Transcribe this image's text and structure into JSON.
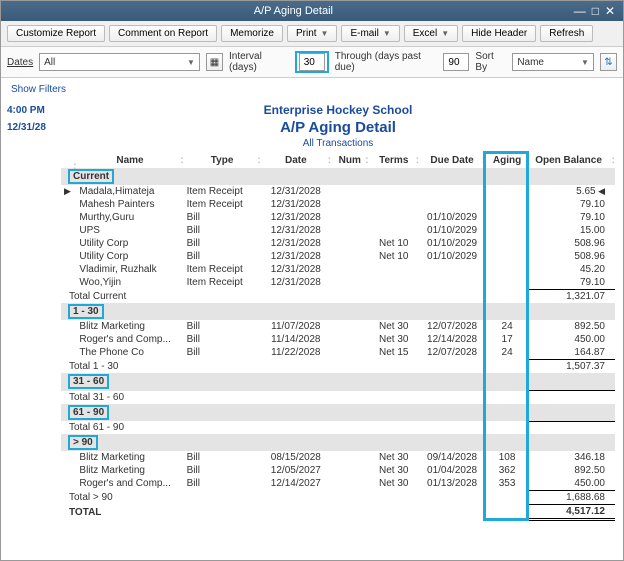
{
  "window": {
    "title": "A/P Aging Detail"
  },
  "toolbar": {
    "customize": "Customize Report",
    "comment": "Comment on Report",
    "memorize": "Memorize",
    "print": "Print",
    "email": "E-mail",
    "excel": "Excel",
    "hide_header": "Hide Header",
    "refresh": "Refresh"
  },
  "filters": {
    "dates_label": "Dates",
    "dates_value": "All",
    "interval_label": "Interval (days)",
    "interval_value": "30",
    "through_label": "Through (days past due)",
    "through_value": "90",
    "sortby_label": "Sort By",
    "sortby_value": "Name",
    "show_filters": "Show Filters"
  },
  "meta": {
    "time": "4:00 PM",
    "date": "12/31/28"
  },
  "report": {
    "org": "Enterprise Hockey School",
    "title": "A/P Aging Detail",
    "subtitle": "All Transactions",
    "columns": [
      "Name",
      "Type",
      "Date",
      "Num",
      "Terms",
      "Due Date",
      "Aging",
      "Open Balance"
    ],
    "sections": [
      {
        "label": "Current",
        "highlight": true,
        "rows": [
          {
            "name": "Madala,Himateja",
            "type": "Item Receipt",
            "date": "12/31/2028",
            "num": "",
            "terms": "",
            "due": "",
            "aging": "",
            "bal": "5.65",
            "arrow": true
          },
          {
            "name": "Mahesh Painters",
            "type": "Item Receipt",
            "date": "12/31/2028",
            "num": "",
            "terms": "",
            "due": "",
            "aging": "",
            "bal": "79.10"
          },
          {
            "name": "Murthy,Guru",
            "type": "Bill",
            "date": "12/31/2028",
            "num": "",
            "terms": "",
            "due": "01/10/2029",
            "aging": "",
            "bal": "79.10"
          },
          {
            "name": "UPS",
            "type": "Bill",
            "date": "12/31/2028",
            "num": "",
            "terms": "",
            "due": "01/10/2029",
            "aging": "",
            "bal": "15.00"
          },
          {
            "name": "Utility Corp",
            "type": "Bill",
            "date": "12/31/2028",
            "num": "",
            "terms": "Net 10",
            "due": "01/10/2029",
            "aging": "",
            "bal": "508.96"
          },
          {
            "name": "Utility Corp",
            "type": "Bill",
            "date": "12/31/2028",
            "num": "",
            "terms": "Net 10",
            "due": "01/10/2029",
            "aging": "",
            "bal": "508.96"
          },
          {
            "name": "Vladimir, Ruzhalk",
            "type": "Item Receipt",
            "date": "12/31/2028",
            "num": "",
            "terms": "",
            "due": "",
            "aging": "",
            "bal": "45.20"
          },
          {
            "name": "Woo,Yijin",
            "type": "Item Receipt",
            "date": "12/31/2028",
            "num": "",
            "terms": "",
            "due": "",
            "aging": "",
            "bal": "79.10"
          }
        ],
        "total_label": "Total Current",
        "total_bal": "1,321.07"
      },
      {
        "label": "1 - 30",
        "highlight": true,
        "rows": [
          {
            "name": "Blitz Marketing",
            "type": "Bill",
            "date": "11/07/2028",
            "num": "",
            "terms": "Net 30",
            "due": "12/07/2028",
            "aging": "24",
            "bal": "892.50"
          },
          {
            "name": "Roger's and Comp...",
            "type": "Bill",
            "date": "11/14/2028",
            "num": "",
            "terms": "Net 30",
            "due": "12/14/2028",
            "aging": "17",
            "bal": "450.00"
          },
          {
            "name": "The Phone Co",
            "type": "Bill",
            "date": "11/22/2028",
            "num": "",
            "terms": "Net 15",
            "due": "12/07/2028",
            "aging": "24",
            "bal": "164.87"
          }
        ],
        "total_label": "Total 1 - 30",
        "total_bal": "1,507.37"
      },
      {
        "label": "31 - 60",
        "highlight": true,
        "rows": [],
        "total_label": "Total 31 - 60",
        "total_bal": ""
      },
      {
        "label": "61 - 90",
        "highlight": true,
        "rows": [],
        "total_label": "Total 61 - 90",
        "total_bal": ""
      },
      {
        "label": "> 90",
        "highlight": true,
        "rows": [
          {
            "name": "Blitz Marketing",
            "type": "Bill",
            "date": "08/15/2028",
            "num": "",
            "terms": "Net 30",
            "due": "09/14/2028",
            "aging": "108",
            "bal": "346.18"
          },
          {
            "name": "Blitz Marketing",
            "type": "Bill",
            "date": "12/05/2027",
            "num": "",
            "terms": "Net 30",
            "due": "01/04/2028",
            "aging": "362",
            "bal": "892.50"
          },
          {
            "name": "Roger's and Comp...",
            "type": "Bill",
            "date": "12/14/2027",
            "num": "",
            "terms": "Net 30",
            "due": "01/13/2028",
            "aging": "353",
            "bal": "450.00"
          }
        ],
        "total_label": "Total > 90",
        "total_bal": "1,688.68"
      }
    ],
    "grand_label": "TOTAL",
    "grand_bal": "4,517.12"
  },
  "highlight": {
    "aging_column": true,
    "color": "#1fa8d8"
  }
}
